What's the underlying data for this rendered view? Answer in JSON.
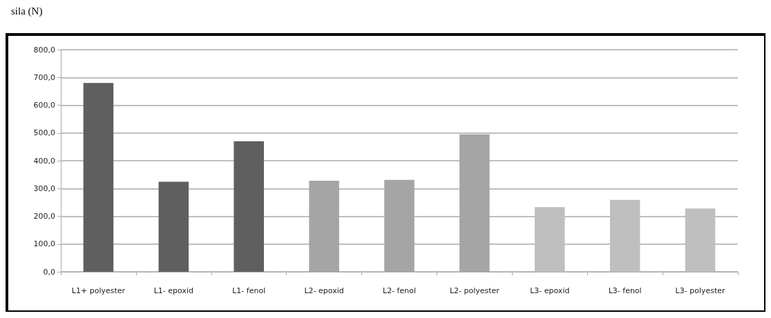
{
  "chart_data": {
    "type": "bar",
    "ylabel": "sila (N)",
    "categories": [
      "L1+ polyester",
      "L1- epoxid",
      "L1- fenol",
      "L2- epoxid",
      "L2- fenol",
      "L2- polyester",
      "L3- epoxid",
      "L3- fenol",
      "L3- polyester"
    ],
    "values": [
      680,
      324,
      470,
      328,
      331,
      495,
      233,
      259,
      228
    ],
    "colors": [
      "#5f5f5f",
      "#5f5f5f",
      "#5f5f5f",
      "#a5a5a5",
      "#a5a5a5",
      "#a5a5a5",
      "#bfbfbf",
      "#bfbfbf",
      "#bfbfbf"
    ],
    "ylim": [
      0,
      800
    ],
    "yticks": [
      {
        "value": 0,
        "label": "0,0"
      },
      {
        "value": 100,
        "label": "100,0"
      },
      {
        "value": 200,
        "label": "200,0"
      },
      {
        "value": 300,
        "label": "300,0"
      },
      {
        "value": 400,
        "label": "400,0"
      },
      {
        "value": 500,
        "label": "500,0"
      },
      {
        "value": 600,
        "label": "600,0"
      },
      {
        "value": 700,
        "label": "700,0"
      },
      {
        "value": 800,
        "label": "800,0"
      }
    ],
    "grid": "y"
  }
}
